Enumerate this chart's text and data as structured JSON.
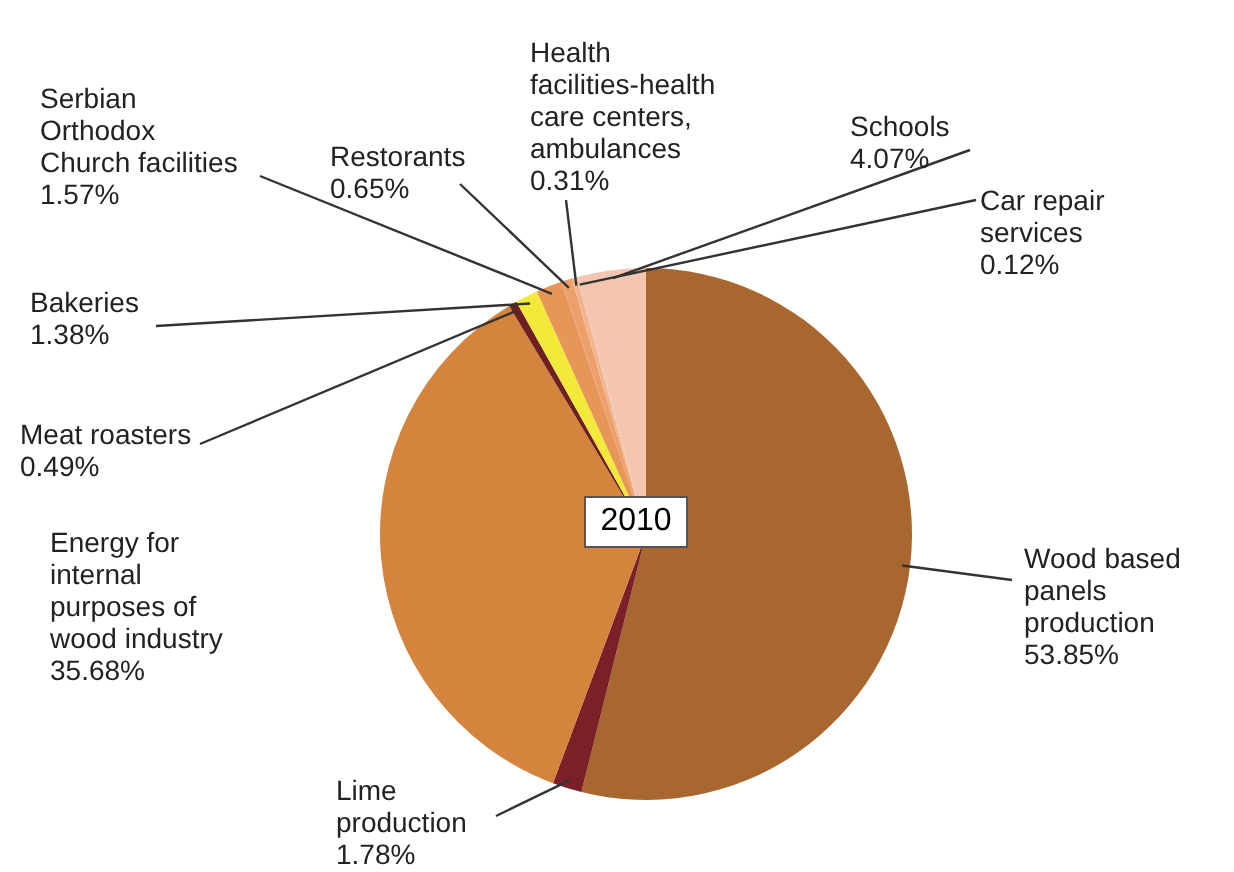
{
  "chart_data": {
    "type": "pie",
    "categories": [
      "Wood based panels production",
      "Lime production",
      "Energy for internal purposes of wood industry",
      "Meat roasters",
      "Bakeries",
      "Serbian Orthodox Church facilities",
      "Restorants",
      "Health facilities-health care centers, ambulances",
      "Car repair services",
      "Schools"
    ],
    "values": [
      53.85,
      1.78,
      35.68,
      0.49,
      1.38,
      1.57,
      0.65,
      0.31,
      0.12,
      4.07
    ],
    "colors": [
      "#a8672f",
      "#7b2028",
      "#d4843d",
      "#6e1f1f",
      "#f2e93a",
      "#e8955a",
      "#eca06c",
      "#f0b48e",
      "#f3c0a5",
      "#f4c6b2"
    ],
    "value_labels": [
      "53.85%",
      "1.78%",
      "35.68%",
      "0.49%",
      "1.38%",
      "1.57%",
      "0.65%",
      "0.31%",
      "0.12%",
      "4.07%"
    ],
    "annotations": [
      "2010"
    ],
    "legend": false
  }
}
